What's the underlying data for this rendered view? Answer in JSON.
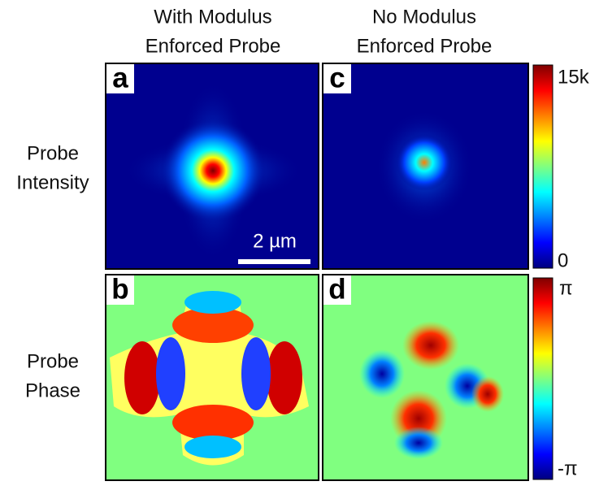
{
  "columns": [
    {
      "line1": "With Modulus",
      "line2": "Enforced Probe"
    },
    {
      "line1": "No Modulus",
      "line2": "Enforced Probe"
    }
  ],
  "rows": [
    {
      "line1": "Probe",
      "line2": "Intensity"
    },
    {
      "line1": "Probe",
      "line2": "Phase"
    }
  ],
  "panels": [
    "a",
    "c",
    "b",
    "d"
  ],
  "scale_bar": "2 µm",
  "colorbars": [
    {
      "top": "15k",
      "bottom": "0"
    },
    {
      "top": "π",
      "bottom": "-π"
    }
  ]
}
